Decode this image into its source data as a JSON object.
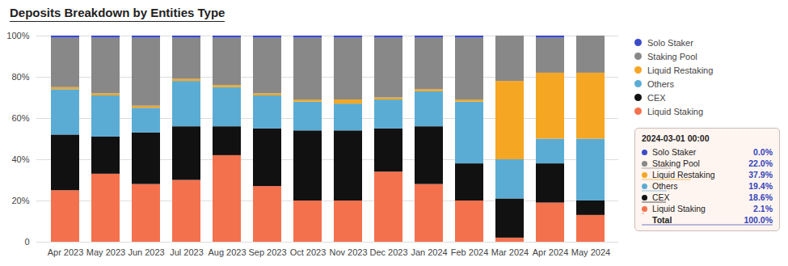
{
  "chart_data": {
    "type": "bar",
    "stacked": true,
    "title": "Deposits Breakdown by Entities Type",
    "categories": [
      "Apr 2023",
      "May 2023",
      "Jun 2023",
      "Jul 2023",
      "Aug 2023",
      "Sep 2023",
      "Oct 2023",
      "Nov 2023",
      "Dec 2023",
      "Jan 2024",
      "Feb 2024",
      "Mar 2024",
      "Apr 2024",
      "May 2024"
    ],
    "series": [
      {
        "name": "Liquid Staking",
        "color": "#f4714e",
        "values": [
          25,
          33,
          28,
          30,
          42,
          27,
          20,
          20,
          34,
          28,
          20,
          2,
          19,
          13
        ]
      },
      {
        "name": "CEX",
        "color": "#111111",
        "values": [
          27,
          18,
          25,
          26,
          14,
          28,
          34,
          34,
          21,
          28,
          18,
          19,
          19,
          7
        ]
      },
      {
        "name": "Others",
        "color": "#5bacd4",
        "values": [
          22,
          20,
          12,
          22,
          19,
          16,
          14,
          13,
          14,
          17,
          30,
          19,
          12,
          30
        ]
      },
      {
        "name": "Liquid Restaking",
        "color": "#f5a623",
        "values": [
          1,
          1,
          1,
          1,
          1,
          1,
          1,
          2,
          1,
          1,
          1,
          38,
          32,
          32
        ]
      },
      {
        "name": "Staking Pool",
        "color": "#888888",
        "values": [
          24,
          27,
          33,
          20,
          23,
          27,
          30,
          30,
          29,
          25,
          30,
          22,
          17,
          18
        ]
      },
      {
        "name": "Solo Staker",
        "color": "#3b4bc8",
        "values": [
          1,
          1,
          1,
          1,
          1,
          1,
          1,
          1,
          1,
          1,
          1,
          0,
          1,
          0
        ]
      }
    ],
    "ylim": [
      0,
      100
    ],
    "yticks": [
      0,
      {
        "value": 20,
        "label": "20%"
      },
      {
        "value": 40,
        "label": "40%"
      },
      {
        "value": 60,
        "label": "60%"
      },
      {
        "value": 80,
        "label": "80%"
      },
      {
        "value": 100,
        "label": "100%"
      }
    ],
    "grid": true,
    "legend": "right",
    "annotation": {
      "title": "2024-03-01 00:00",
      "items": [
        {
          "name": "Solo Staker",
          "value": 0.0,
          "value_label": "0.0%",
          "color": "#3b4bc8"
        },
        {
          "name": "Staking Pool",
          "value": 22.0,
          "value_label": "22.0%",
          "color": "#888888"
        },
        {
          "name": "Liquid Restaking",
          "value": 37.9,
          "value_label": "37.9%",
          "color": "#f5a623"
        },
        {
          "name": "Others",
          "value": 19.4,
          "value_label": "19.4%",
          "color": "#5bacd4"
        },
        {
          "name": "CEX",
          "value": 18.6,
          "value_label": "18.6%",
          "color": "#111111"
        },
        {
          "name": "Liquid Staking",
          "value": 2.1,
          "value_label": "2.1%",
          "color": "#f4714e"
        },
        {
          "name": "Total",
          "value": 100.0,
          "value_label": "100.0%"
        }
      ]
    }
  }
}
